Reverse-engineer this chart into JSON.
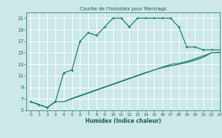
{
  "title": "Courbe de l'humidex pour Mersrags",
  "xlabel": "Humidex (Indice chaleur)",
  "background_color": "#cce8e8",
  "grid_color": "#ffffff",
  "line_color": "#1a7a6e",
  "xlim": [
    -0.5,
    23
  ],
  "ylim": [
    5,
    22
  ],
  "yticks": [
    5,
    7,
    9,
    11,
    13,
    15,
    17,
    19,
    21
  ],
  "xticks": [
    0,
    1,
    2,
    3,
    4,
    5,
    6,
    7,
    8,
    9,
    10,
    11,
    12,
    13,
    14,
    15,
    16,
    17,
    18,
    19,
    20,
    21,
    22,
    23
  ],
  "series1_x": [
    0,
    1,
    2,
    3,
    4,
    5,
    6,
    7,
    8,
    9,
    10,
    11,
    12,
    13,
    14,
    15,
    16,
    17,
    18,
    19,
    20,
    21,
    22,
    23
  ],
  "series1_y": [
    6.5,
    6.0,
    5.5,
    6.5,
    11.5,
    12.0,
    17.0,
    18.5,
    18.0,
    19.5,
    21.0,
    21.0,
    19.5,
    21.0,
    21.0,
    21.0,
    21.0,
    21.0,
    19.5,
    16.0,
    16.0,
    15.5,
    15.5,
    15.5
  ],
  "series2_x": [
    0,
    1,
    2,
    3,
    4,
    5,
    6,
    7,
    8,
    9,
    10,
    11,
    12,
    13,
    14,
    15,
    16,
    17,
    18,
    19,
    20,
    21,
    22,
    23
  ],
  "series2_y": [
    6.5,
    6.0,
    5.5,
    6.5,
    6.5,
    7.0,
    7.5,
    8.0,
    8.5,
    9.0,
    9.5,
    10.0,
    10.5,
    11.0,
    11.5,
    12.0,
    12.5,
    13.0,
    13.2,
    13.5,
    14.0,
    14.5,
    15.0,
    15.0
  ],
  "series3_x": [
    0,
    1,
    2,
    3,
    4,
    5,
    6,
    7,
    8,
    9,
    10,
    11,
    12,
    13,
    14,
    15,
    16,
    17,
    18,
    19,
    20,
    21,
    22,
    23
  ],
  "series3_y": [
    6.5,
    6.0,
    5.5,
    6.5,
    6.5,
    7.0,
    7.5,
    8.0,
    8.5,
    9.0,
    9.5,
    10.0,
    10.5,
    11.0,
    11.5,
    12.0,
    12.5,
    12.8,
    13.0,
    13.3,
    13.7,
    14.2,
    15.0,
    15.0
  ],
  "series4_x": [
    0,
    1,
    2,
    3,
    4,
    5,
    6,
    7,
    8,
    9,
    10,
    11,
    12,
    13,
    14,
    15,
    16,
    17,
    18,
    19,
    20,
    21,
    22,
    23
  ],
  "series4_y": [
    6.5,
    6.0,
    5.5,
    6.5,
    6.5,
    7.1,
    7.6,
    8.1,
    8.6,
    9.1,
    9.6,
    10.1,
    10.6,
    11.1,
    11.6,
    12.0,
    12.4,
    12.7,
    13.0,
    13.4,
    13.8,
    14.3,
    15.0,
    15.1
  ]
}
